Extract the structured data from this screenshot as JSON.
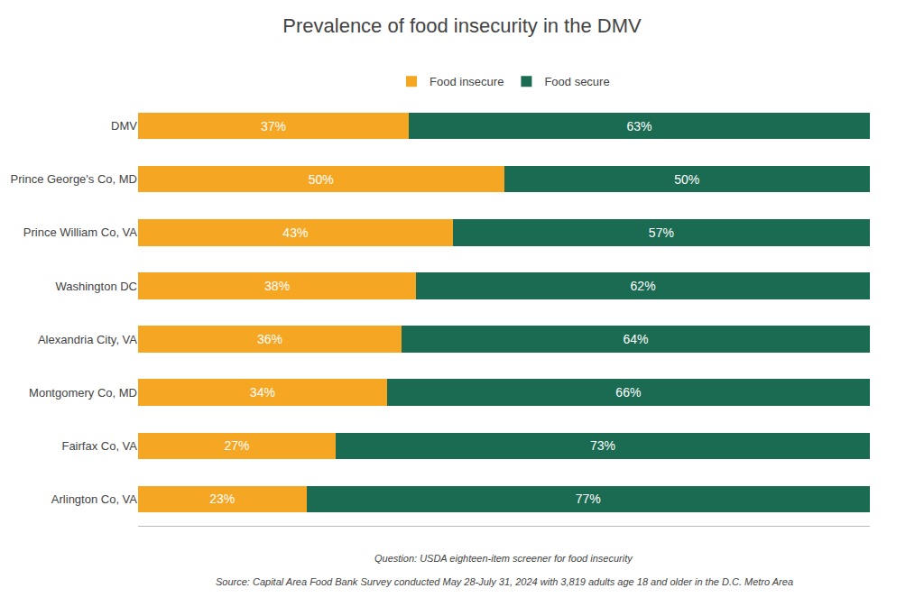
{
  "chart_data": {
    "type": "bar",
    "orientation": "horizontal",
    "stacked": true,
    "title": "Prevalence of food insecurity in the DMV",
    "categories": [
      "DMV",
      "Prince George's Co, MD",
      "Prince William Co, VA",
      "Washington DC",
      "Alexandria City, VA",
      "Montgomery Co, MD",
      "Fairfax Co, VA",
      "Arlington Co, VA"
    ],
    "series": [
      {
        "name": "Food insecure",
        "color": "#F5A623",
        "values": [
          37,
          50,
          43,
          38,
          36,
          34,
          27,
          23
        ],
        "value_labels": [
          "37%",
          "50%",
          "43%",
          "38%",
          "36%",
          "34%",
          "27%",
          "23%"
        ]
      },
      {
        "name": "Food secure",
        "color": "#1A6B52",
        "values": [
          63,
          50,
          57,
          62,
          64,
          66,
          73,
          77
        ],
        "value_labels": [
          "63%",
          "50%",
          "57%",
          "62%",
          "64%",
          "66%",
          "73%",
          "77%"
        ]
      }
    ],
    "xlim": [
      0,
      100
    ],
    "data_labels": true,
    "tick_labels": "y",
    "grid": false,
    "legend": "top",
    "annotations": [
      "Question: USDA eighteen-item screener for food insecurity",
      "Source: Capital Area Food Bank Survey conducted May 28-July 31, 2024 with 3,819 adults age 18 and older in the D.C. Metro Area"
    ]
  }
}
